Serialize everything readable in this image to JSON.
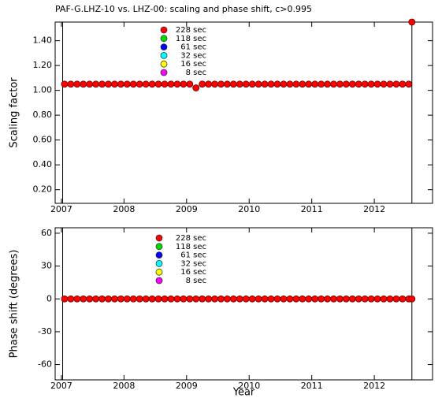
{
  "chart_data": [
    {
      "type": "scatter",
      "title": "PAF-G.LHZ-10 vs. LHZ-00: scaling and phase shift, c>0.995",
      "y_label": "Scaling factor",
      "xlim": [
        2006.9,
        2012.93
      ],
      "xticks": [
        2007,
        2008,
        2009,
        2010,
        2011,
        2012
      ],
      "ylim": [
        0.09,
        1.55
      ],
      "yticks": [
        {
          "value": 0.2,
          "label": "0.20"
        },
        {
          "value": 0.4,
          "label": "0.40"
        },
        {
          "value": 0.6,
          "label": "0.60"
        },
        {
          "value": 0.8,
          "label": "0.80"
        },
        {
          "value": 1.0,
          "label": "1.00"
        },
        {
          "value": 1.2,
          "label": "1.20"
        },
        {
          "value": 1.4,
          "label": "1.40"
        }
      ],
      "vlines": [
        2007.02,
        2012.6
      ],
      "legend": [
        {
          "name": "228 sec",
          "color": "#ff0000"
        },
        {
          "name": "118 sec",
          "color": "#00dd00"
        },
        {
          "name": "61 sec",
          "color": "#0000ff"
        },
        {
          "name": "32 sec",
          "color": "#00ffff"
        },
        {
          "name": "16 sec",
          "color": "#ffff00"
        },
        {
          "name": "8 sec",
          "color": "#ff00ff"
        }
      ],
      "x": [
        2007.05,
        2007.15,
        2007.25,
        2007.35,
        2007.45,
        2007.55,
        2007.65,
        2007.75,
        2007.85,
        2007.95,
        2008.05,
        2008.15,
        2008.25,
        2008.35,
        2008.45,
        2008.55,
        2008.65,
        2008.75,
        2008.85,
        2008.95,
        2009.05,
        2009.15,
        2009.25,
        2009.35,
        2009.45,
        2009.55,
        2009.65,
        2009.75,
        2009.85,
        2009.95,
        2010.05,
        2010.15,
        2010.25,
        2010.35,
        2010.45,
        2010.55,
        2010.65,
        2010.75,
        2010.85,
        2010.95,
        2011.05,
        2011.15,
        2011.25,
        2011.35,
        2011.45,
        2011.55,
        2011.65,
        2011.75,
        2011.85,
        2011.95,
        2012.05,
        2012.15,
        2012.25,
        2012.35,
        2012.45,
        2012.55,
        2012.6
      ],
      "series": [
        {
          "name": "228 sec",
          "color": "#ff0000",
          "values": [
            1.05,
            1.05,
            1.05,
            1.05,
            1.05,
            1.05,
            1.05,
            1.05,
            1.05,
            1.05,
            1.05,
            1.05,
            1.05,
            1.05,
            1.05,
            1.05,
            1.05,
            1.05,
            1.05,
            1.05,
            1.05,
            1.02,
            1.05,
            1.05,
            1.05,
            1.05,
            1.05,
            1.05,
            1.05,
            1.05,
            1.05,
            1.05,
            1.05,
            1.05,
            1.05,
            1.05,
            1.05,
            1.05,
            1.05,
            1.05,
            1.05,
            1.05,
            1.05,
            1.05,
            1.05,
            1.05,
            1.05,
            1.05,
            1.05,
            1.05,
            1.05,
            1.05,
            1.05,
            1.05,
            1.05,
            1.05,
            1.55
          ]
        }
      ]
    },
    {
      "type": "scatter",
      "y_label": "Phase shift (degrees)",
      "x_label": "Year",
      "xlim": [
        2006.9,
        2012.93
      ],
      "xticks": [
        2007,
        2008,
        2009,
        2010,
        2011,
        2012
      ],
      "ylim": [
        -74,
        65
      ],
      "yticks": [
        -60,
        -30,
        0,
        30,
        60
      ],
      "vlines": [
        2007.02,
        2012.6
      ],
      "legend": [
        {
          "name": "228 sec",
          "color": "#ff0000"
        },
        {
          "name": "118 sec",
          "color": "#00dd00"
        },
        {
          "name": "61 sec",
          "color": "#0000ff"
        },
        {
          "name": "32 sec",
          "color": "#00ffff"
        },
        {
          "name": "16 sec",
          "color": "#ffff00"
        },
        {
          "name": "8 sec",
          "color": "#ff00ff"
        }
      ],
      "x": [
        2007.05,
        2007.15,
        2007.25,
        2007.35,
        2007.45,
        2007.55,
        2007.65,
        2007.75,
        2007.85,
        2007.95,
        2008.05,
        2008.15,
        2008.25,
        2008.35,
        2008.45,
        2008.55,
        2008.65,
        2008.75,
        2008.85,
        2008.95,
        2009.05,
        2009.15,
        2009.25,
        2009.35,
        2009.45,
        2009.55,
        2009.65,
        2009.75,
        2009.85,
        2009.95,
        2010.05,
        2010.15,
        2010.25,
        2010.35,
        2010.45,
        2010.55,
        2010.65,
        2010.75,
        2010.85,
        2010.95,
        2011.05,
        2011.15,
        2011.25,
        2011.35,
        2011.45,
        2011.55,
        2011.65,
        2011.75,
        2011.85,
        2011.95,
        2012.05,
        2012.15,
        2012.25,
        2012.35,
        2012.45,
        2012.55,
        2012.6
      ],
      "series": [
        {
          "name": "228 sec",
          "color": "#ff0000",
          "values": [
            0,
            0,
            0,
            0,
            0,
            0,
            0,
            0,
            0,
            0,
            0,
            0,
            0,
            0,
            0,
            0,
            0,
            0,
            0,
            0,
            0,
            0,
            0,
            0,
            0,
            0,
            0,
            0,
            0,
            0,
            0,
            0,
            0,
            0,
            0,
            0,
            0,
            0,
            0,
            0,
            0,
            0,
            0,
            0,
            0,
            0,
            0,
            0,
            0,
            0,
            0,
            0,
            0,
            0,
            0,
            0,
            0
          ]
        }
      ]
    }
  ]
}
